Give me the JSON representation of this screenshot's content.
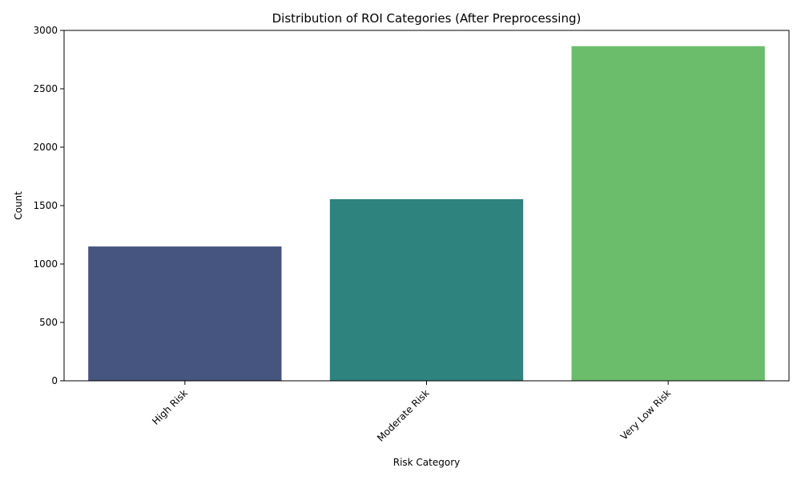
{
  "chart_data": {
    "type": "bar",
    "title": "Distribution of ROI Categories (After Preprocessing)",
    "xlabel": "Risk Category",
    "ylabel": "Count",
    "categories": [
      "High Risk",
      "Moderate Risk",
      "Very Low Risk"
    ],
    "values": [
      1150,
      1555,
      2865
    ],
    "colors": [
      "#46557f",
      "#2e837e",
      "#6bbd6c"
    ],
    "ylim": [
      0,
      3000
    ],
    "yticks": [
      0,
      500,
      1000,
      1500,
      2000,
      2500,
      3000
    ],
    "grid": false,
    "legend": "none",
    "xtick_rotation": 45
  }
}
